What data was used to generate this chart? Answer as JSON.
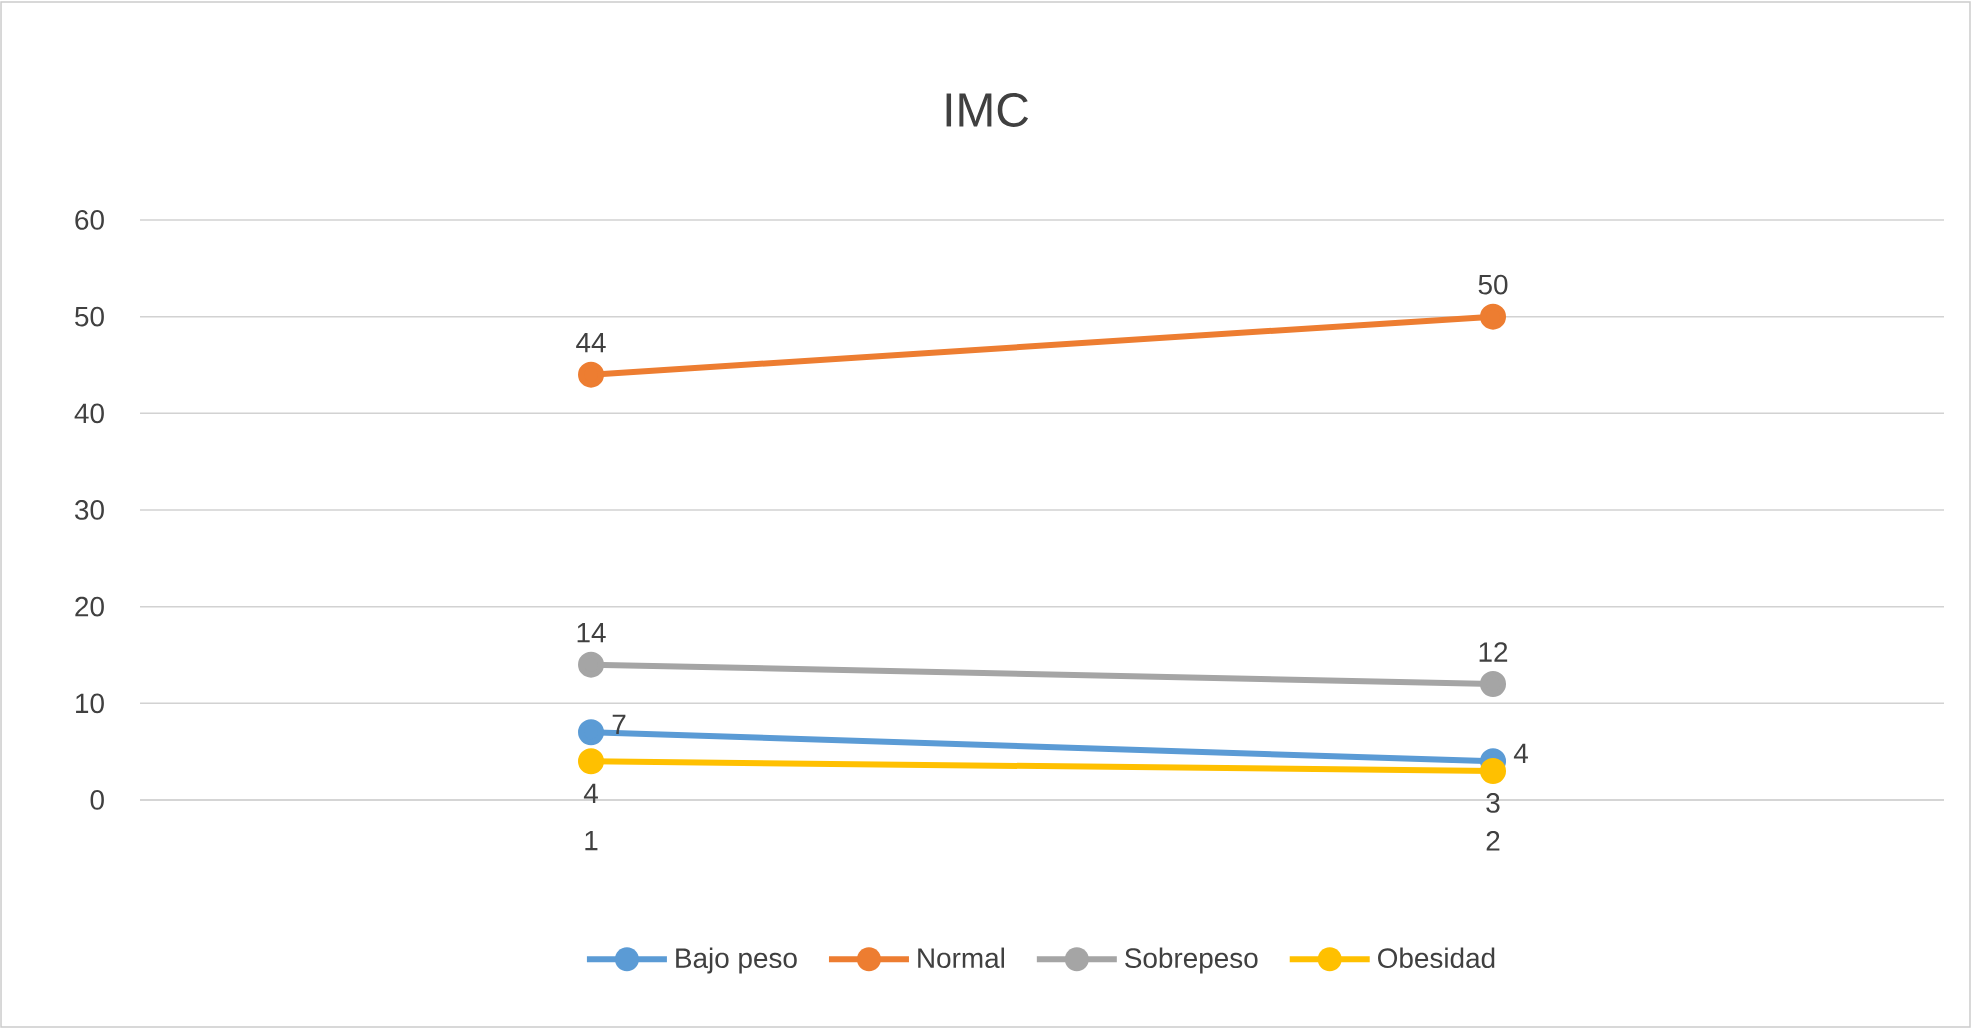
{
  "chart_data": {
    "type": "line",
    "title": "IMC",
    "categories": [
      "1",
      "2"
    ],
    "series": [
      {
        "name": "Bajo peso",
        "color": "#5b9bd5",
        "values": [
          7,
          4
        ]
      },
      {
        "name": "Normal",
        "color": "#ed7d31",
        "values": [
          44,
          50
        ]
      },
      {
        "name": "Sobrepeso",
        "color": "#a5a5a5",
        "values": [
          14,
          12
        ]
      },
      {
        "name": "Obesidad",
        "color": "#ffc000",
        "values": [
          4,
          3
        ]
      }
    ],
    "ylim": [
      0,
      60
    ],
    "yticks": [
      0,
      10,
      20,
      30,
      40,
      50,
      60
    ],
    "grid": "y",
    "legend": "bottom",
    "marker": "circle",
    "data_labels": true
  }
}
